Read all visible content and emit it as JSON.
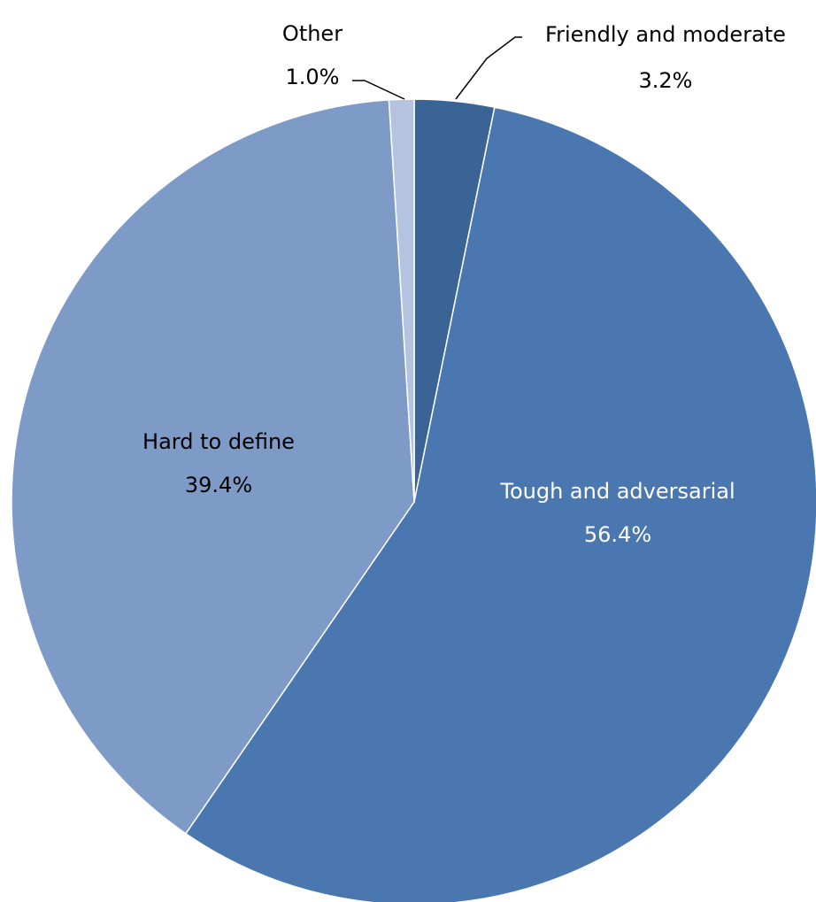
{
  "chart_data": {
    "type": "pie",
    "start": "12 o'clock",
    "direction": "clockwise",
    "slices": [
      {
        "label": "Friendly and moderate",
        "value": 3.2,
        "value_label": "3.2%",
        "color": "#3b6496",
        "text_color": "#000000"
      },
      {
        "label": "Tough and adversarial",
        "value": 56.4,
        "value_label": "56.4%",
        "color": "#4a77af",
        "text_color": "#ffffff"
      },
      {
        "label": "Hard to define",
        "value": 39.4,
        "value_label": "39.4%",
        "color": "#7e9ac6",
        "text_color": "#000000"
      },
      {
        "label": "Other",
        "value": 1.0,
        "value_label": "1.0%",
        "color": "#b4c4e0",
        "text_color": "#000000"
      }
    ]
  }
}
